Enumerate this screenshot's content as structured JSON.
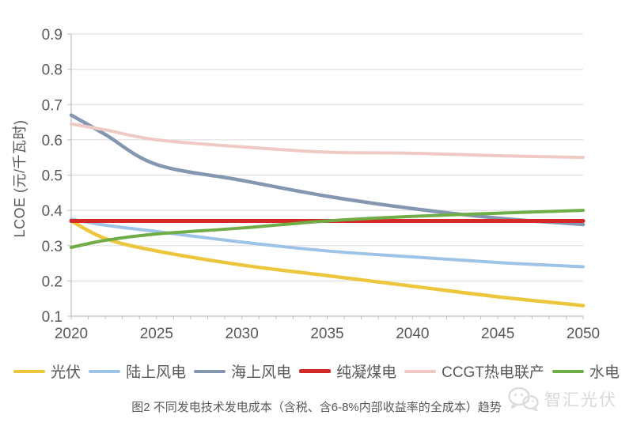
{
  "chart_data": {
    "type": "line",
    "title": "",
    "xlabel": "",
    "ylabel": "LCOE (元/千瓦时)",
    "xlim": [
      2020,
      2050
    ],
    "ylim": [
      0.1,
      0.9
    ],
    "x_ticks": [
      2020,
      2025,
      2030,
      2035,
      2040,
      2045,
      2050
    ],
    "y_ticks": [
      0.1,
      0.2,
      0.3,
      0.4,
      0.5,
      0.6,
      0.7,
      0.8,
      0.9
    ],
    "grid": "horizontal",
    "legend_position": "bottom",
    "x": [
      2020,
      2022,
      2025,
      2030,
      2035,
      2040,
      2045,
      2050
    ],
    "series": [
      {
        "id": "solar-pv",
        "name": "光伏",
        "color": "#ECC63D",
        "width": 4.5,
        "values": [
          0.37,
          0.32,
          0.285,
          0.245,
          0.215,
          0.185,
          0.155,
          0.13
        ]
      },
      {
        "id": "onshore-wind",
        "name": "陆上风电",
        "color": "#9DC3E6",
        "width": 4,
        "values": [
          0.375,
          0.358,
          0.34,
          0.31,
          0.285,
          0.268,
          0.252,
          0.24
        ]
      },
      {
        "id": "offshore-wind",
        "name": "海上风电",
        "color": "#8496B0",
        "width": 4.5,
        "values": [
          0.67,
          0.615,
          0.53,
          0.485,
          0.44,
          0.405,
          0.378,
          0.36
        ]
      },
      {
        "id": "coal-condensing",
        "name": "纯凝煤电",
        "color": "#D22B27",
        "width": 5,
        "values": [
          0.37,
          0.37,
          0.37,
          0.37,
          0.37,
          0.37,
          0.37,
          0.37
        ]
      },
      {
        "id": "ccgt-chp",
        "name": "CCGT热电联产",
        "color": "#EFCAC5",
        "width": 4,
        "values": [
          0.645,
          0.628,
          0.6,
          0.58,
          0.565,
          0.562,
          0.555,
          0.55
        ]
      },
      {
        "id": "hydro",
        "name": "水电",
        "color": "#70AD47",
        "width": 4,
        "values": [
          0.295,
          0.315,
          0.333,
          0.35,
          0.37,
          0.383,
          0.392,
          0.4
        ]
      }
    ]
  },
  "caption": "图2 不同发电技术发电成本（含税、含6-8%内部收益率的全成本）趋势",
  "watermark": {
    "text": "智汇光伏",
    "icon": "wechat-icon"
  },
  "colors": {
    "grid": "#DCDCDC",
    "axis": "#BFBFBF",
    "tick_label": "#595959",
    "watermark": "#D9D9D9",
    "background": "#FFFFFF"
  }
}
